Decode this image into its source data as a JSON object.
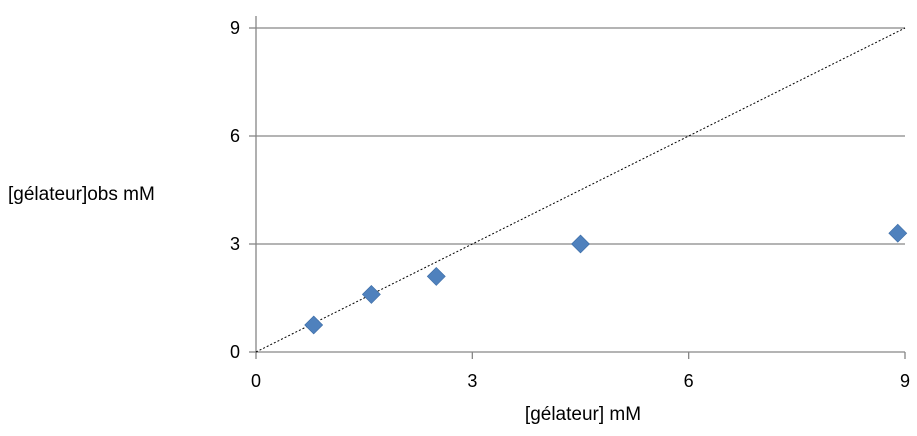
{
  "chart_data": {
    "type": "scatter",
    "xlabel": "[gélateur] mM",
    "ylabel": "[gélateur]obs mM",
    "xlim": [
      0,
      9
    ],
    "ylim": [
      0,
      9
    ],
    "xticks": [
      "0",
      "3",
      "6",
      "9"
    ],
    "yticks": [
      "0",
      "3",
      "6",
      "9"
    ],
    "grid": "horizontal",
    "series": [
      {
        "points": [
          {
            "x": 0.8,
            "y": 0.75
          },
          {
            "x": 1.6,
            "y": 1.6
          },
          {
            "x": 2.5,
            "y": 2.1
          },
          {
            "x": 4.5,
            "y": 3.0
          },
          {
            "x": 8.9,
            "y": 3.3
          }
        ],
        "marker": "diamond",
        "color": "#4F81BD"
      }
    ],
    "reference_line": {
      "style": "dotted",
      "from": [
        0,
        0
      ],
      "to": [
        9,
        9
      ],
      "color": "#000000"
    }
  }
}
